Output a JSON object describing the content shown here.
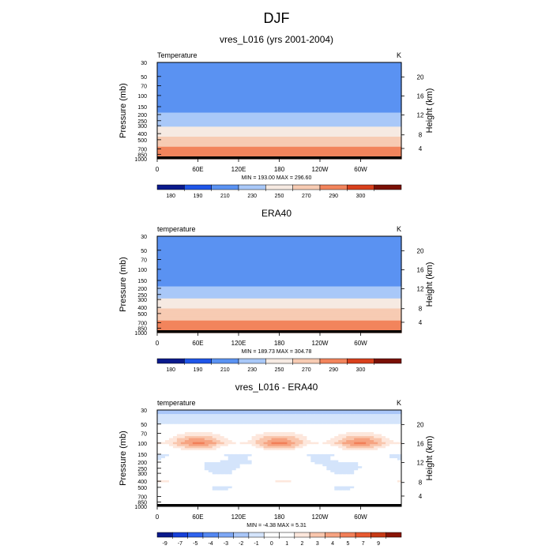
{
  "figure": {
    "title": "DJF"
  },
  "colors": {
    "temperature_scale": [
      "#0a1a8c",
      "#0f34c8",
      "#1f55e8",
      "#3a74f0",
      "#5a92f2",
      "#7fadf5",
      "#a9c8f8",
      "#cfe0fb",
      "#f6eae2",
      "#f7cbb3",
      "#f5a886",
      "#f2845c",
      "#ec5f36",
      "#d8401c",
      "#b42a10",
      "#7a1005"
    ],
    "difference_scale": [
      "#0a1a8c",
      "#1740d8",
      "#2f63ee",
      "#5488f2",
      "#7ea8f5",
      "#a9c6f8",
      "#d4e4fb",
      "#ffffff",
      "#fde7dc",
      "#f9c6ad",
      "#f6a381",
      "#f27f58",
      "#e85a31",
      "#c73a16",
      "#8a1506"
    ]
  },
  "chart_data": [
    {
      "type": "heatmap",
      "title": "vres_L016 (yrs 2001-2004)",
      "left_label": "Temperature",
      "units": "K",
      "ylabel": "Pressure (mb)",
      "ylabel_right": "Height (km)",
      "pressure_ticks": [
        "30",
        "50",
        "70",
        "100",
        "150",
        "200",
        "250",
        "300",
        "400",
        "500",
        "700",
        "850",
        "1000"
      ],
      "height_ticks": [
        "20",
        "16",
        "12",
        "8",
        "4"
      ],
      "lon_ticks": [
        "0",
        "60E",
        "120E",
        "180",
        "120W",
        "60W"
      ],
      "stats": "MIN = 193.00  MAX = 296.60",
      "levels": [
        180,
        190,
        210,
        230,
        250,
        270,
        290,
        300
      ],
      "level_labels": [
        "180",
        "190",
        "210",
        "230",
        "250",
        "270",
        "290",
        "300"
      ],
      "profile": [
        {
          "p": 30,
          "v": 206
        },
        {
          "p": 50,
          "v": 200
        },
        {
          "p": 70,
          "v": 196
        },
        {
          "p": 100,
          "v": 194
        },
        {
          "p": 150,
          "v": 200
        },
        {
          "p": 200,
          "v": 212
        },
        {
          "p": 250,
          "v": 222
        },
        {
          "p": 300,
          "v": 230
        },
        {
          "p": 400,
          "v": 246
        },
        {
          "p": 500,
          "v": 256
        },
        {
          "p": 700,
          "v": 273
        },
        {
          "p": 850,
          "v": 283
        },
        {
          "p": 1000,
          "v": 294
        }
      ],
      "zonal_amplitude": 0
    },
    {
      "type": "heatmap",
      "title": "ERA40",
      "left_label": "temperature",
      "units": "K",
      "ylabel": "Pressure (mb)",
      "ylabel_right": "Height (km)",
      "pressure_ticks": [
        "30",
        "50",
        "70",
        "100",
        "150",
        "200",
        "250",
        "300",
        "400",
        "500",
        "700",
        "850",
        "1000"
      ],
      "height_ticks": [
        "20",
        "16",
        "12",
        "8",
        "4"
      ],
      "lon_ticks": [
        "0",
        "60E",
        "120E",
        "180",
        "120W",
        "60W"
      ],
      "stats": "MIN = 189.73  MAX = 304.78",
      "levels": [
        180,
        190,
        210,
        230,
        250,
        270,
        290,
        300
      ],
      "level_labels": [
        "180",
        "190",
        "210",
        "230",
        "250",
        "270",
        "290",
        "300"
      ],
      "profile": [
        {
          "p": 30,
          "v": 208
        },
        {
          "p": 50,
          "v": 202
        },
        {
          "p": 70,
          "v": 198
        },
        {
          "p": 100,
          "v": 196
        },
        {
          "p": 150,
          "v": 203
        },
        {
          "p": 200,
          "v": 214
        },
        {
          "p": 250,
          "v": 224
        },
        {
          "p": 300,
          "v": 232
        },
        {
          "p": 400,
          "v": 247
        },
        {
          "p": 500,
          "v": 258
        },
        {
          "p": 700,
          "v": 274
        },
        {
          "p": 850,
          "v": 284
        },
        {
          "p": 1000,
          "v": 296
        }
      ],
      "zonal_amplitude": 0
    },
    {
      "type": "heatmap",
      "title": "vres_L016 - ERA40",
      "left_label": "temperature",
      "units": "K",
      "ylabel": "Pressure (mb)",
      "ylabel_right": "Height (km)",
      "pressure_ticks": [
        "30",
        "50",
        "70",
        "100",
        "150",
        "200",
        "250",
        "300",
        "400",
        "500",
        "700",
        "850",
        "1000"
      ],
      "height_ticks": [
        "20",
        "16",
        "12",
        "8",
        "4"
      ],
      "lon_ticks": [
        "0",
        "60E",
        "120E",
        "180",
        "120W",
        "60W"
      ],
      "stats": "MIN = -4.38  MAX =  5.31",
      "levels": [
        -9,
        -7,
        -5,
        -4,
        -3,
        -2,
        -1,
        0,
        1,
        2,
        3,
        4,
        5,
        7,
        9
      ],
      "level_labels": [
        "-9",
        "-7",
        "-5",
        "-4",
        "-3",
        "-2",
        "-1",
        "0",
        "1",
        "2",
        "3",
        "4",
        "5",
        "7",
        "9"
      ],
      "profile": [
        {
          "p": 30,
          "v": -2.5
        },
        {
          "p": 50,
          "v": -1.0
        },
        {
          "p": 70,
          "v": 0.8
        },
        {
          "p": 100,
          "v": 2.6
        },
        {
          "p": 150,
          "v": -0.8
        },
        {
          "p": 200,
          "v": -1.0
        },
        {
          "p": 250,
          "v": -0.9
        },
        {
          "p": 300,
          "v": -0.6
        },
        {
          "p": 400,
          "v": 0.3
        },
        {
          "p": 500,
          "v": -0.5
        },
        {
          "p": 700,
          "v": -0.9
        },
        {
          "p": 850,
          "v": -0.3
        },
        {
          "p": 1000,
          "v": 0.2
        }
      ],
      "zonal_amplitude": 1.6
    }
  ]
}
